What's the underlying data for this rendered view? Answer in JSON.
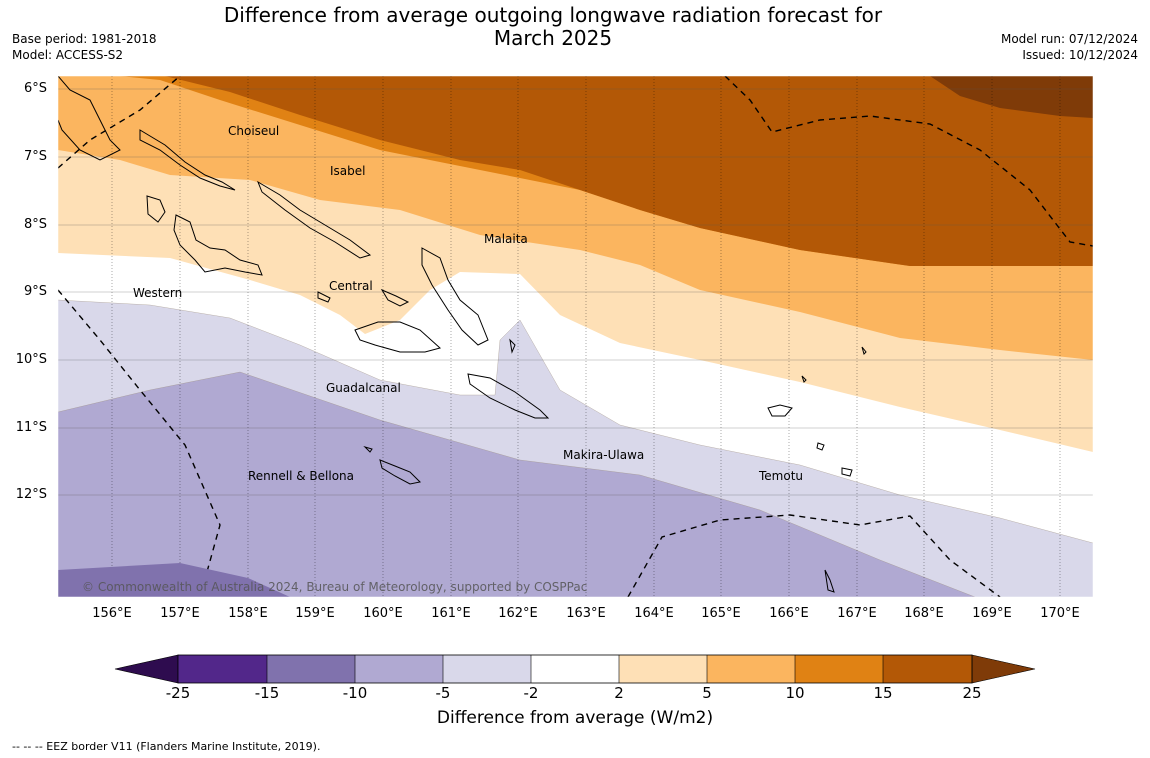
{
  "header": {
    "title_line1": "Difference from average outgoing longwave radiation forecast for",
    "title_line2": "March 2025",
    "base_period": "Base period: 1981-2018",
    "model": "Model: ACCESS-S2",
    "model_run": "Model run: 07/12/2024",
    "issued": "Issued: 10/12/2024"
  },
  "map": {
    "lat_labels": [
      "6°S",
      "7°S",
      "8°S",
      "9°S",
      "10°S",
      "11°S",
      "12°S"
    ],
    "lon_labels": [
      "156°E",
      "157°E",
      "158°E",
      "159°E",
      "160°E",
      "161°E",
      "162°E",
      "163°E",
      "164°E",
      "165°E",
      "166°E",
      "167°E",
      "168°E",
      "169°E",
      "170°E"
    ],
    "regions": {
      "choiseul": "Choiseul",
      "isabel": "Isabel",
      "malaita": "Malaita",
      "western": "Western",
      "central": "Central",
      "guadalcanal": "Guadalcanal",
      "makira": "Makira-Ulawa",
      "rennell": "Rennell & Bellona",
      "temotu": "Temotu"
    },
    "copyright": "© Commonwealth of Australia 2024, Bureau of Meteorology, supported by COSPPac"
  },
  "colorbar": {
    "ticks": [
      "-25",
      "-15",
      "-10",
      "-5",
      "-2",
      "2",
      "5",
      "10",
      "15",
      "25"
    ],
    "colors": {
      "below_-25": "#2e0c4f",
      "-25_-15": "#52278a",
      "-15_-10": "#8072ad",
      "-10_-5": "#b0a9d2",
      "-5_-2": "#d9d8ea",
      "-2_2": "#ffffff",
      "2_5": "#fee0b6",
      "5_10": "#fbb55f",
      "10_15": "#e08214",
      "15_25": "#b35806",
      "above_25": "#7f3b08"
    },
    "title": "Difference from average (W/m2)"
  },
  "footnote": "--  --  -- EEZ border V11 (Flanders Marine Institute, 2019)."
}
